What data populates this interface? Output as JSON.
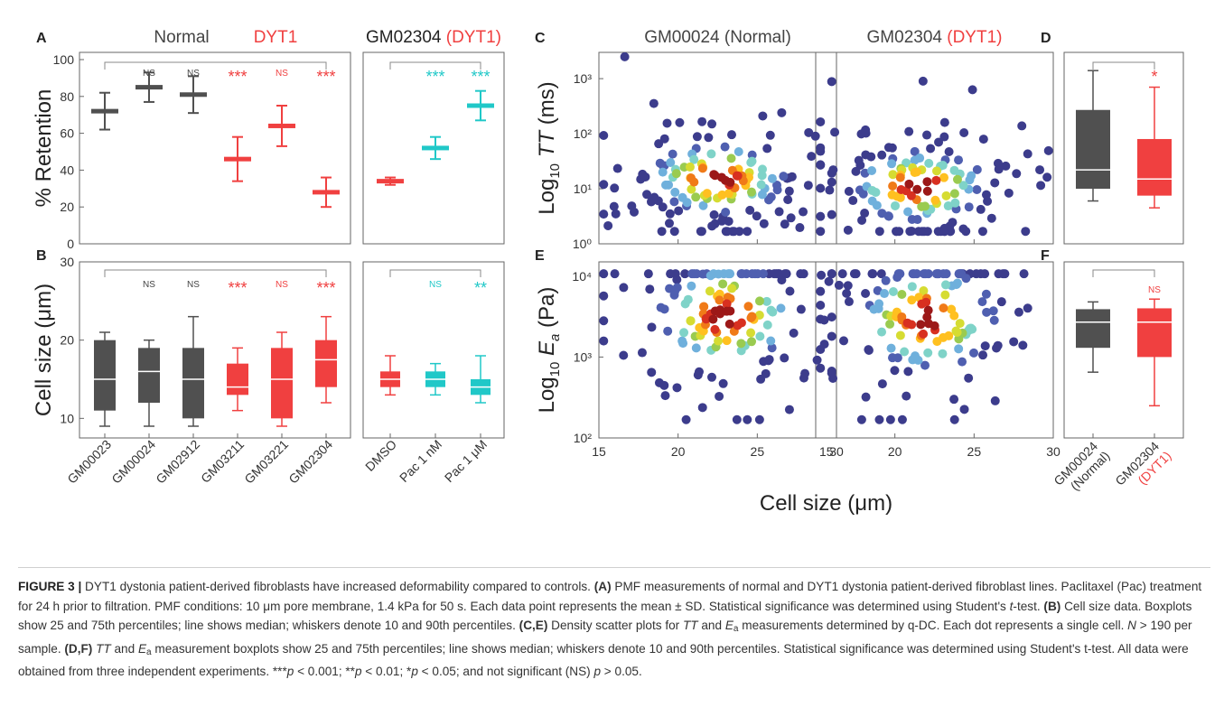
{
  "colors": {
    "normal": "#505050",
    "dyt1": "#f04040",
    "cyan": "#20c8c8",
    "axis": "#555555"
  },
  "panel_letters": [
    "A",
    "B",
    "C",
    "D",
    "E",
    "F"
  ],
  "chart_data": [
    {
      "panel": "A",
      "type": "errorbar",
      "group_labels": [
        "Normal",
        "DYT1"
      ],
      "ylabel": "% Retention",
      "ylim": [
        0,
        100
      ],
      "yticks": [
        0,
        20,
        40,
        60,
        80,
        100
      ],
      "categories": [
        "GM00023",
        "GM00024",
        "GM02912",
        "GM03211",
        "GM03221",
        "GM02304"
      ],
      "values": [
        72,
        85,
        81,
        46,
        64,
        28
      ],
      "sd": [
        10,
        8,
        10,
        12,
        11,
        8
      ],
      "group": [
        "normal",
        "normal",
        "normal",
        "dyt1",
        "dyt1",
        "dyt1"
      ],
      "significance": [
        "",
        "NS",
        "NS",
        "***",
        "NS",
        "***"
      ]
    },
    {
      "panel": "A2",
      "type": "errorbar",
      "title_prefix": "GM02304",
      "title_suffix": "(DYT1)",
      "ylim": [
        0,
        100
      ],
      "categories": [
        "DMSO",
        "Pac 1 nM",
        "Pac 1 μM"
      ],
      "values": [
        34,
        52,
        75
      ],
      "sd": [
        2,
        6,
        8
      ],
      "group": [
        "dyt1",
        "cyan",
        "cyan"
      ],
      "significance": [
        "",
        "***",
        "***"
      ]
    },
    {
      "panel": "B",
      "type": "boxplot",
      "ylabel": "Cell size (μm)",
      "ylim": [
        7.5,
        30
      ],
      "yticks": [
        10,
        20,
        30
      ],
      "categories": [
        "GM00023",
        "GM00024",
        "GM02912",
        "GM03211",
        "GM03221",
        "GM02304"
      ],
      "boxes": [
        {
          "p10": 9,
          "q1": 11,
          "median": 15,
          "q3": 20,
          "p90": 21
        },
        {
          "p10": 9,
          "q1": 12,
          "median": 16,
          "q3": 19,
          "p90": 20
        },
        {
          "p10": 9,
          "q1": 10,
          "median": 15,
          "q3": 19,
          "p90": 23
        },
        {
          "p10": 11,
          "q1": 13,
          "median": 14,
          "q3": 17,
          "p90": 19
        },
        {
          "p10": 9,
          "q1": 10,
          "median": 15,
          "q3": 19,
          "p90": 21
        },
        {
          "p10": 12,
          "q1": 14,
          "median": 17.5,
          "q3": 20,
          "p90": 23
        }
      ],
      "group": [
        "normal",
        "normal",
        "normal",
        "dyt1",
        "dyt1",
        "dyt1"
      ],
      "significance": [
        "",
        "NS",
        "NS",
        "***",
        "NS",
        "***"
      ]
    },
    {
      "panel": "B2",
      "type": "boxplot",
      "ylim": [
        7.5,
        30
      ],
      "categories": [
        "DMSO",
        "Pac 1 nM",
        "Pac 1 μM"
      ],
      "boxes": [
        {
          "p10": 13,
          "q1": 14,
          "median": 15,
          "q3": 16,
          "p90": 18
        },
        {
          "p10": 13,
          "q1": 14,
          "median": 15,
          "q3": 16,
          "p90": 17
        },
        {
          "p10": 12,
          "q1": 13,
          "median": 14,
          "q3": 15,
          "p90": 18
        }
      ],
      "group": [
        "dyt1",
        "cyan",
        "cyan"
      ],
      "significance": [
        "",
        "NS",
        "**"
      ]
    },
    {
      "panel": "C",
      "type": "scatter",
      "scale": "log",
      "titles": [
        {
          "prefix": "GM00024",
          "suffix": "(Normal)"
        },
        {
          "prefix": "GM02304",
          "suffix": "(DYT1)"
        }
      ],
      "ylabel_prefix": "Log",
      "ylabel_sub": "10",
      "ylabel_var": "TT",
      "ylabel_unit": "(ms)",
      "ylim": [
        1,
        3000
      ],
      "yticks": [
        "10⁰",
        "10¹",
        "10²",
        "10³"
      ],
      "point_count": 150,
      "density_center_x": [
        22.5,
        21.5
      ],
      "density_center_y": [
        15,
        11
      ]
    },
    {
      "panel": "E",
      "type": "scatter",
      "scale": "log",
      "ylabel_prefix": "Log",
      "ylabel_sub": "10",
      "ylabel_var": "E",
      "ylabel_var_sub": "a",
      "ylabel_unit": "(Pa)",
      "ylim": [
        100,
        15000
      ],
      "yticks": [
        "10²",
        "10³",
        "10⁴"
      ],
      "point_count": 150,
      "xlabel": "Cell size (μm)",
      "xlim": [
        15,
        30
      ],
      "xticks": [
        "15",
        "20",
        "25",
        "30"
      ],
      "density_center_x": [
        23,
        22
      ],
      "density_center_y": [
        3200,
        3000
      ]
    },
    {
      "panel": "D",
      "type": "boxplot",
      "scale": "log",
      "categories": [
        "GM00024 (Normal)",
        "GM02304 (DYT1)"
      ],
      "boxes": [
        {
          "p10": 6,
          "q1": 10,
          "median": 22,
          "q3": 270,
          "p90": 1400
        },
        {
          "p10": 4.5,
          "q1": 7.5,
          "median": 15,
          "q3": 80,
          "p90": 700
        }
      ],
      "significance": [
        "",
        "*"
      ]
    },
    {
      "panel": "F",
      "type": "boxplot",
      "scale": "log",
      "boxes": [
        {
          "p10": 650,
          "q1": 1300,
          "median": 2700,
          "q3": 3900,
          "p90": 4800
        },
        {
          "p10": 250,
          "q1": 1000,
          "median": 2700,
          "q3": 4000,
          "p90": 5200
        }
      ],
      "significance": [
        "",
        "NS"
      ]
    }
  ],
  "xlabels_D": [
    {
      "top": "GM00024",
      "bottom": "(Normal)"
    },
    {
      "top": "GM02304",
      "bottom": "(DYT1)"
    }
  ],
  "caption": {
    "figure_label": "FIGURE 3 |",
    "s1": " DYT1 dystonia patient-derived fibroblasts have increased deformability compared to controls. ",
    "a_label": "(A)",
    "s2": " PMF measurements of normal and DYT1 dystonia patient-derived fibroblast lines. Paclitaxel (Pac) treatment for 24 h prior to filtration. PMF conditions: 10 μm pore membrane, 1.4 kPa for 50 s. Each data point represents the mean ± SD. Statistical significance was determined using Student's ",
    "t": "t",
    "s3": "-test. ",
    "b_label": "(B)",
    "s4": " Cell size data. Boxplots show 25 and 75th percentiles; line shows median; whiskers denote 10 and 90th percentiles. ",
    "ce_label": "(C,E)",
    "s5": " Density scatter plots for ",
    "tt": "TT",
    "s6": " and ",
    "e": "E",
    "a_sub": "a",
    "s7": " measurements determined by q-DC. Each dot represents a single cell. ",
    "n": "N",
    "s8": " > 190 per sample. ",
    "df_label": "(D,F)",
    "s9": " measurement boxplots show 25 and 75th percentiles; line shows median; whiskers denote 10 and 90th percentiles. Statistical significance was determined using Student's t-test. All data were obtained from three independent experiments. ***",
    "p": "p",
    "s10": " < 0.001; **",
    "s11": " < 0.01; *",
    "s12": " < 0.05; and not significant (NS) ",
    "s13": " > 0.05."
  }
}
